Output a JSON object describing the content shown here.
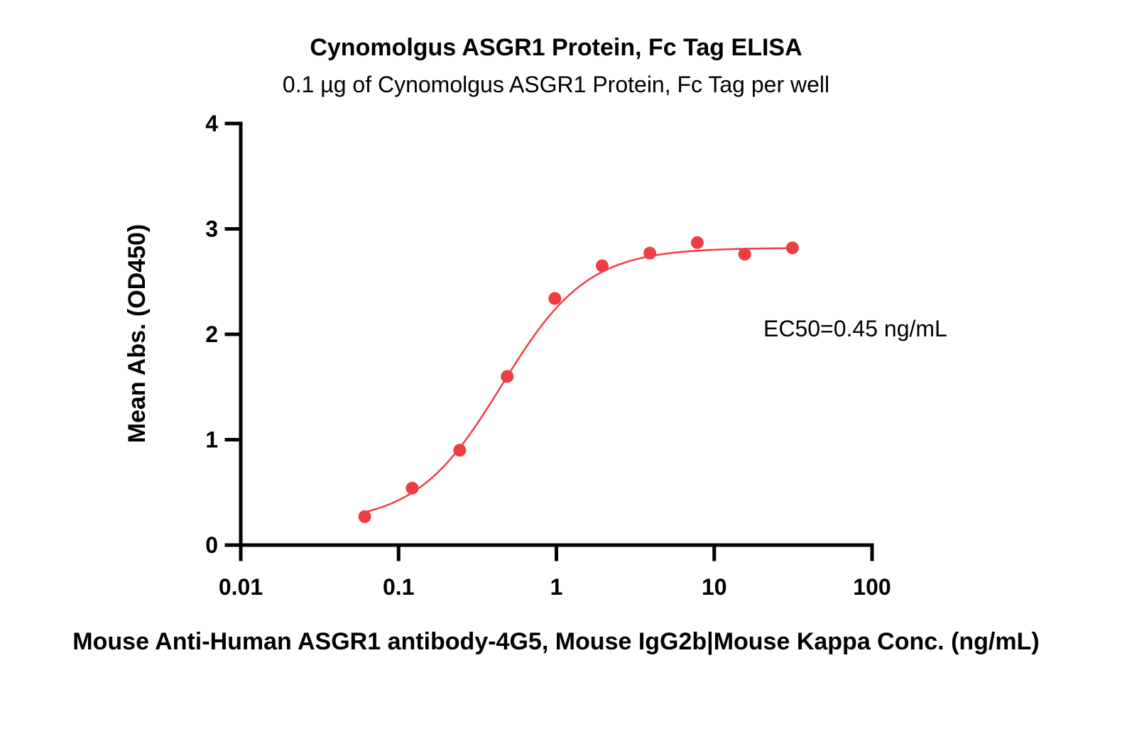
{
  "chart_data": {
    "type": "scatter",
    "title": "Cynomolgus ASGR1 Protein, Fc Tag ELISA",
    "subtitle": "0.1 µg of Cynomolgus ASGR1 Protein, Fc Tag per well",
    "xlabel": "Mouse Anti-Human ASGR1 antibody-4G5, Mouse IgG2b|Mouse Kappa Conc. (ng/mL)",
    "ylabel": "Mean Abs. (OD450)",
    "x_scale": "log",
    "xlim": [
      0.01,
      100
    ],
    "ylim": [
      0,
      4
    ],
    "x_ticks": [
      "0.01",
      "0.1",
      "1",
      "10",
      "100"
    ],
    "y_ticks": [
      "0",
      "1",
      "2",
      "3",
      "4"
    ],
    "series": [
      {
        "x": [
          0.061,
          0.122,
          0.244,
          0.488,
          0.977,
          1.95,
          3.91,
          7.81,
          15.6,
          31.3
        ],
        "y": [
          0.27,
          0.54,
          0.9,
          1.6,
          2.34,
          2.65,
          2.77,
          2.87,
          2.76,
          2.82
        ],
        "fit": "4PL",
        "fit_params": {
          "bottom": 0.21,
          "top": 2.82,
          "ec50": 0.45,
          "hill": 1.6
        },
        "color": "#ef3e42"
      }
    ],
    "annotation": "EC50=0.45 ng/mL",
    "grid": false,
    "legend": "none"
  }
}
